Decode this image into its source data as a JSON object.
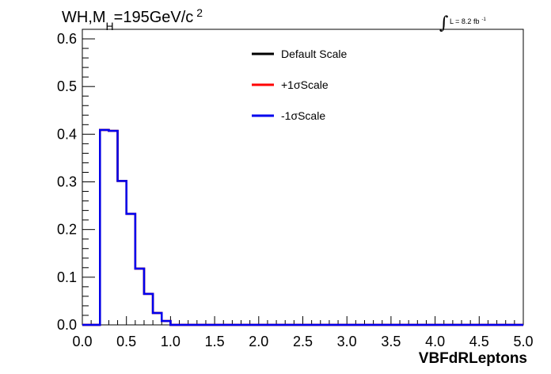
{
  "chart_data": {
    "type": "line",
    "title": "WH,M_H=195GeV/c^2",
    "title_parts": {
      "a": "WH,M",
      "sub": "H",
      "b": "=195GeV/c",
      "sup": "2"
    },
    "lumi": {
      "integral": "∫",
      "text": "L = 8.2 fb",
      "sup": "-1"
    },
    "xlabel": "VBFdRLeptons",
    "ylabel": "",
    "xlim": [
      0,
      5
    ],
    "ylim": [
      0,
      0.62
    ],
    "x_ticks": [
      "0.0",
      "0.5",
      "1.0",
      "1.5",
      "2.0",
      "2.5",
      "3.0",
      "3.5",
      "4.0",
      "4.5",
      "5.0"
    ],
    "y_ticks": [
      "0.0",
      "0.1",
      "0.2",
      "0.3",
      "0.4",
      "0.5",
      "0.6"
    ],
    "grid": false,
    "legend_position": "top-center",
    "bin_width": 0.1,
    "bin_edges_start": 0.0,
    "series": [
      {
        "name": "Default Scale",
        "color": "#000000",
        "values": [
          0,
          0,
          0.409,
          0.407,
          0.302,
          0.233,
          0.118,
          0.065,
          0.025,
          0.008,
          0,
          0,
          0,
          0,
          0,
          0,
          0,
          0,
          0,
          0,
          0,
          0,
          0,
          0,
          0,
          0,
          0,
          0,
          0,
          0,
          0,
          0,
          0,
          0,
          0,
          0,
          0,
          0,
          0,
          0,
          0,
          0,
          0,
          0,
          0,
          0,
          0,
          0,
          0,
          0
        ]
      },
      {
        "name": "+1σScale",
        "color": "#ff0000",
        "values": [
          0,
          0,
          0.409,
          0.407,
          0.302,
          0.233,
          0.118,
          0.065,
          0.025,
          0.008,
          0,
          0,
          0,
          0,
          0,
          0,
          0,
          0,
          0,
          0,
          0,
          0,
          0,
          0,
          0,
          0,
          0,
          0,
          0,
          0,
          0,
          0,
          0,
          0,
          0,
          0,
          0,
          0,
          0,
          0,
          0,
          0,
          0,
          0,
          0,
          0,
          0,
          0,
          0,
          0
        ]
      },
      {
        "name": "-1σScale",
        "color": "#0000ee",
        "values": [
          0,
          0,
          0.409,
          0.407,
          0.302,
          0.233,
          0.118,
          0.065,
          0.025,
          0.008,
          0,
          0,
          0,
          0,
          0,
          0,
          0,
          0,
          0,
          0,
          0,
          0,
          0,
          0,
          0,
          0,
          0,
          0,
          0,
          0,
          0,
          0,
          0,
          0,
          0,
          0,
          0,
          0,
          0,
          0,
          0,
          0,
          0,
          0,
          0,
          0,
          0,
          0,
          0,
          0
        ]
      }
    ]
  }
}
